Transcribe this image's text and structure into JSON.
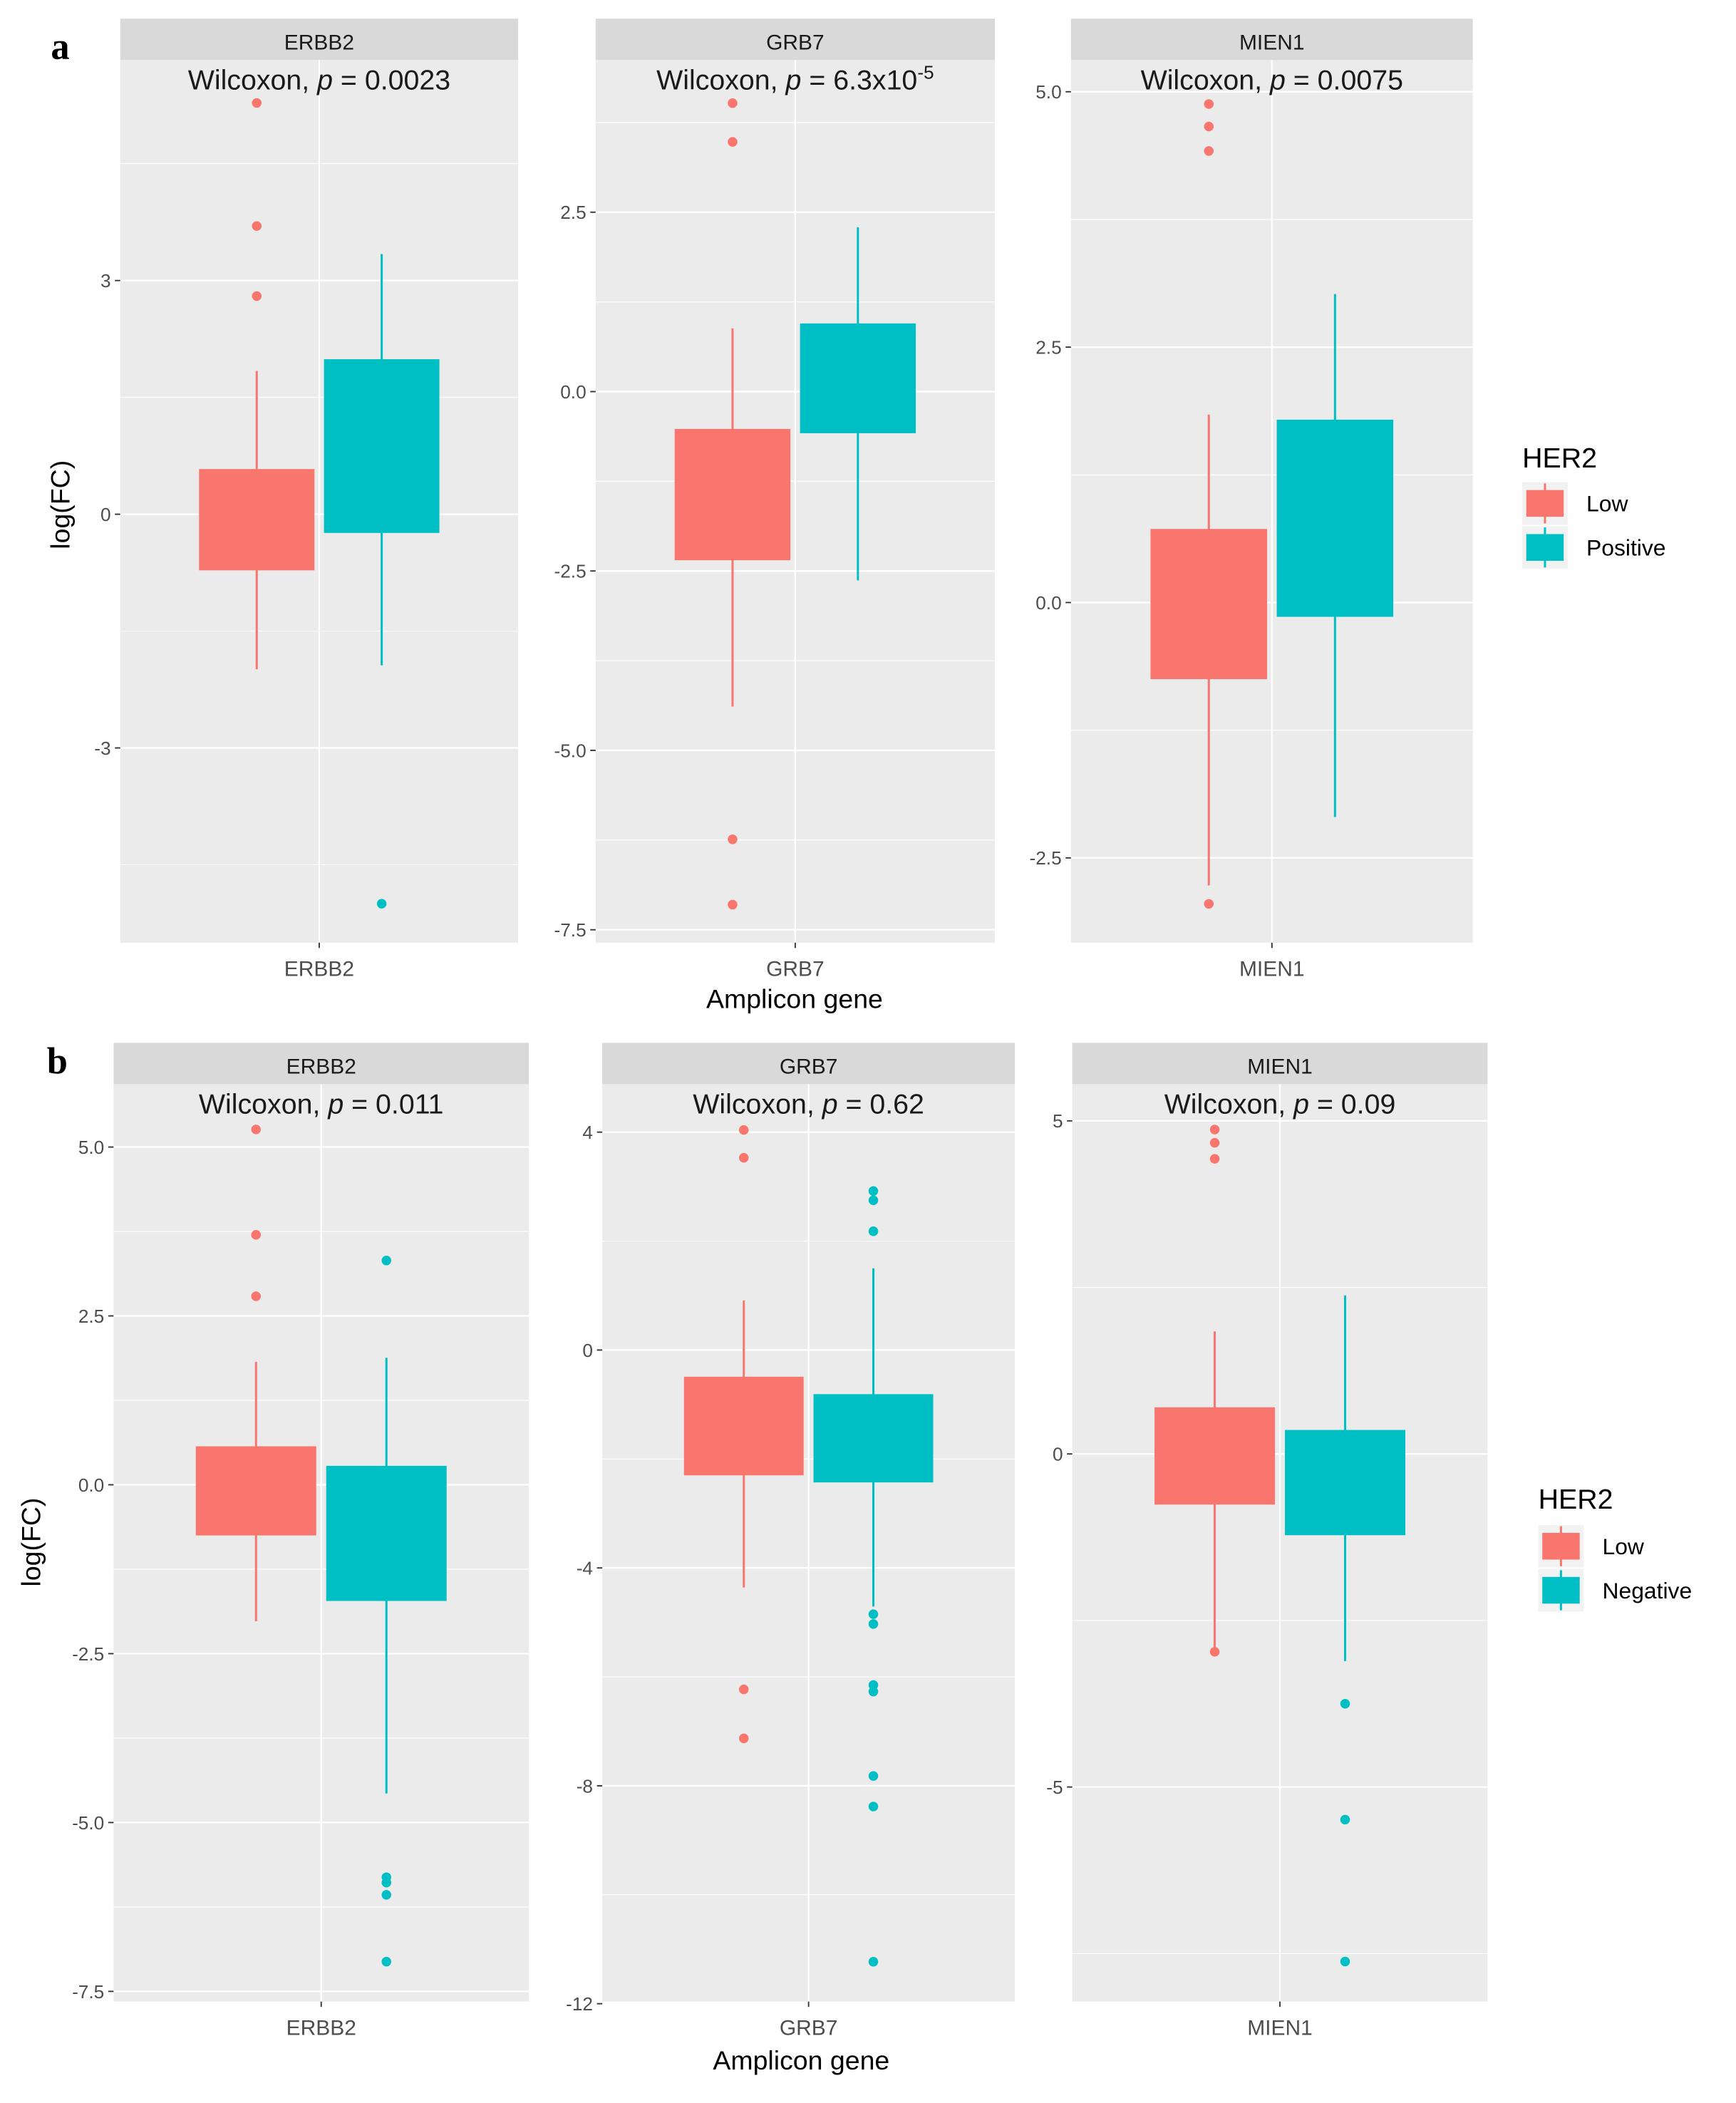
{
  "colors": {
    "Low": "#f8766d",
    "Positive": "#00bfc4",
    "Negative": "#00bfc4",
    "panel_bg": "#ebebeb",
    "strip_bg": "#d9d9d9"
  },
  "chart_data": [
    {
      "label": "a",
      "type": "box",
      "ylabel": "log(FC)",
      "xlabel": "Amplicon gene",
      "legend": {
        "title": "HER2",
        "entries": [
          "Low",
          "Positive"
        ],
        "placement": "right"
      },
      "facets": [
        {
          "title": "ERBB2",
          "x_tick": "ERBB2",
          "test": "Wilcoxon, ",
          "p_sym": "p",
          "p_text": " = 0.0023",
          "p_sup": "",
          "ylim": [
            -5.5,
            5.83
          ],
          "yticks": [
            3,
            0,
            -3
          ],
          "ytick_labels": [
            "3",
            "0",
            "-3"
          ],
          "minor": [
            4.5,
            1.5,
            -1.5,
            -4.5
          ],
          "groups": [
            {
              "name": "Low",
              "q1": -0.72,
              "q3": 0.58,
              "lo": -1.99,
              "hi": 1.84,
              "outliers": [
                5.28,
                3.7,
                2.8
              ]
            },
            {
              "name": "Positive",
              "q1": -0.24,
              "q3": 1.99,
              "lo": -1.94,
              "hi": 3.34,
              "outliers": [
                -5.0
              ]
            }
          ]
        },
        {
          "title": "GRB7",
          "x_tick": "GRB7",
          "test": "Wilcoxon, ",
          "p_sym": "p",
          "p_text": " = 6.3x10",
          "p_sup": "-5",
          "ylim": [
            -7.68,
            4.62
          ],
          "yticks": [
            2.5,
            0,
            -2.5,
            -5,
            -7.5
          ],
          "ytick_labels": [
            "2.5",
            "0.0",
            "-2.5",
            "-5.0",
            "-7.5"
          ],
          "minor": [
            3.75,
            1.25,
            -1.25,
            -3.75,
            -6.25
          ],
          "groups": [
            {
              "name": "Low",
              "q1": -2.35,
              "q3": -0.52,
              "lo": -4.39,
              "hi": 0.88,
              "outliers": [
                4.02,
                3.48,
                -6.24,
                -7.15
              ]
            },
            {
              "name": "Positive",
              "q1": -0.58,
              "q3": 0.95,
              "lo": -2.63,
              "hi": 2.29,
              "outliers": []
            }
          ]
        },
        {
          "title": "MIEN1",
          "x_tick": "MIEN1",
          "test": "Wilcoxon, ",
          "p_sym": "p",
          "p_text": " = 0.0075",
          "p_sup": "",
          "ylim": [
            -3.33,
            5.31
          ],
          "yticks": [
            5,
            2.5,
            0,
            -2.5
          ],
          "ytick_labels": [
            "5.0",
            "2.5",
            "0.0",
            "-2.5"
          ],
          "minor": [
            3.75,
            1.25,
            -1.25
          ],
          "groups": [
            {
              "name": "Low",
              "q1": -0.75,
              "q3": 0.72,
              "lo": -2.77,
              "hi": 1.84,
              "outliers": [
                4.88,
                4.66,
                4.42,
                -2.95
              ]
            },
            {
              "name": "Positive",
              "q1": -0.14,
              "q3": 1.79,
              "lo": -2.1,
              "hi": 3.02,
              "outliers": []
            }
          ]
        }
      ]
    },
    {
      "label": "b",
      "type": "box",
      "ylabel": "log(FC)",
      "xlabel": "Amplicon gene",
      "legend": {
        "title": "HER2",
        "entries": [
          "Low",
          "Negative"
        ],
        "placement": "right"
      },
      "facets": [
        {
          "title": "ERBB2",
          "x_tick": "ERBB2",
          "test": "Wilcoxon, ",
          "p_sym": "p",
          "p_text": " = 0.011",
          "p_sup": "",
          "ylim": [
            -7.65,
            5.93
          ],
          "yticks": [
            5,
            2.5,
            0,
            -2.5,
            -5,
            -7.5
          ],
          "ytick_labels": [
            "5.0",
            "2.5",
            "0.0",
            "-2.5",
            "-5.0",
            "-7.5"
          ],
          "minor": [
            3.75,
            1.25,
            -1.25,
            -3.75,
            -6.25
          ],
          "groups": [
            {
              "name": "Low",
              "q1": -0.75,
              "q3": 0.57,
              "lo": -2.02,
              "hi": 1.82,
              "outliers": [
                5.26,
                3.7,
                2.79
              ]
            },
            {
              "name": "Negative",
              "q1": -1.72,
              "q3": 0.28,
              "lo": -4.57,
              "hi": 1.88,
              "outliers": [
                3.32,
                -5.81,
                -5.89,
                -6.07,
                -7.06
              ]
            }
          ]
        },
        {
          "title": "GRB7",
          "x_tick": "GRB7",
          "test": "Wilcoxon, ",
          "p_sym": "p",
          "p_text": " = 0.62",
          "p_sup": "",
          "ylim": [
            -11.96,
            4.88
          ],
          "yticks": [
            4,
            0,
            -4,
            -8,
            -12
          ],
          "ytick_labels": [
            "4",
            "0",
            "-4",
            "-8",
            "-12"
          ],
          "minor": [
            2,
            -2,
            -6,
            -10
          ],
          "groups": [
            {
              "name": "Low",
              "q1": -2.3,
              "q3": -0.49,
              "lo": -4.36,
              "hi": 0.91,
              "outliers": [
                4.04,
                3.53,
                -6.23,
                -7.13
              ]
            },
            {
              "name": "Negative",
              "q1": -2.43,
              "q3": -0.81,
              "lo": -4.71,
              "hi": 1.5,
              "outliers": [
                2.92,
                2.75,
                2.18,
                -4.85,
                -5.03,
                -6.15,
                -6.27,
                -7.82,
                -8.38,
                -11.23
              ]
            }
          ]
        },
        {
          "title": "MIEN1",
          "x_tick": "MIEN1",
          "test": "Wilcoxon, ",
          "p_sym": "p",
          "p_text": " = 0.09",
          "p_sup": "",
          "ylim": [
            -8.22,
            5.55
          ],
          "yticks": [
            5,
            0,
            -5
          ],
          "ytick_labels": [
            "5",
            "0",
            "-5"
          ],
          "minor": [
            2.5,
            -2.5,
            -7.5
          ],
          "groups": [
            {
              "name": "Low",
              "q1": -0.76,
              "q3": 0.7,
              "lo": -2.97,
              "hi": 1.84,
              "outliers": [
                4.87,
                4.67,
                4.43,
                -2.97
              ]
            },
            {
              "name": "Negative",
              "q1": -1.22,
              "q3": 0.36,
              "lo": -3.11,
              "hi": 2.38,
              "outliers": [
                -3.75,
                -5.49,
                -7.62
              ]
            }
          ]
        }
      ]
    }
  ]
}
